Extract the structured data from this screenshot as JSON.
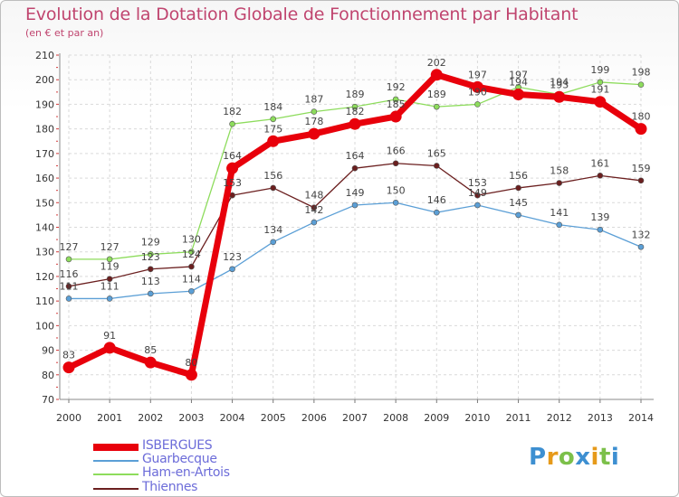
{
  "title": "Evolution de la Dotation Globale de Fonctionnement par Habitant",
  "subtitle": "(en € et par an)",
  "chart_data": {
    "type": "line",
    "x": [
      "2000",
      "2001",
      "2002",
      "2003",
      "2004",
      "2005",
      "2006",
      "2007",
      "2008",
      "2009",
      "2010",
      "2011",
      "2012",
      "2013",
      "2014"
    ],
    "ylim": [
      70,
      210
    ],
    "yticks": [
      70,
      80,
      90,
      100,
      110,
      120,
      130,
      140,
      150,
      160,
      170,
      180,
      190,
      200,
      210
    ],
    "grid": true,
    "legend_position": "bottom-left",
    "series": [
      {
        "name": "ISBERGUES",
        "color": "#e8000b",
        "values": [
          83,
          91,
          85,
          80,
          164,
          175,
          178,
          182,
          185,
          202,
          197,
          194,
          193,
          191,
          180
        ]
      },
      {
        "name": "Guarbecque",
        "color": "#5b9fd6",
        "values": [
          111,
          111,
          113,
          114,
          123,
          134,
          142,
          149,
          150,
          146,
          149,
          145,
          141,
          139,
          132
        ]
      },
      {
        "name": "Ham-en-Artois",
        "color": "#8ddc5c",
        "values": [
          127,
          127,
          129,
          130,
          182,
          184,
          187,
          189,
          192,
          189,
          190,
          197,
          194,
          199,
          198
        ]
      },
      {
        "name": "Thiennes",
        "color": "#6b1f1f",
        "values": [
          116,
          119,
          123,
          124,
          153,
          156,
          148,
          164,
          166,
          165,
          153,
          156,
          158,
          161,
          159
        ]
      }
    ]
  },
  "logo": {
    "letters": [
      "P",
      "r",
      "o",
      "x",
      "i",
      "t",
      "i"
    ],
    "colors": [
      "#3d8fd1",
      "#e69a1a",
      "#7cc04a",
      "#3d8fd1",
      "#e69a1a",
      "#7cc04a",
      "#3d8fd1"
    ]
  }
}
